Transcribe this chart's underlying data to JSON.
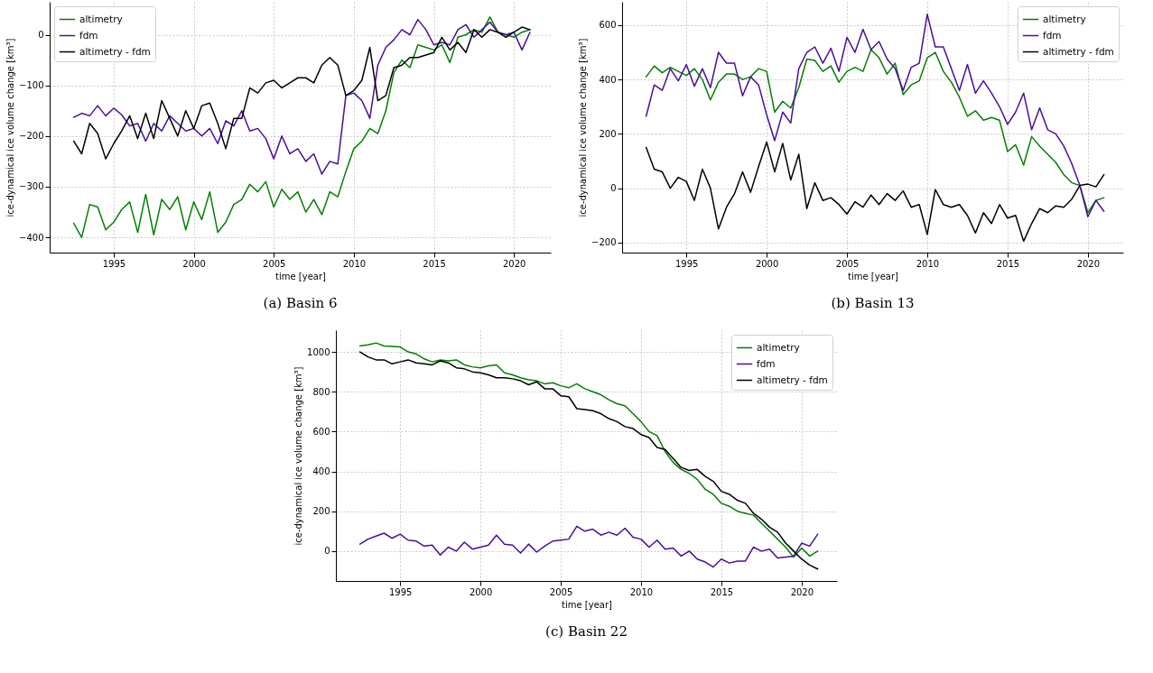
{
  "chart_data": [
    {
      "type": "line",
      "title": "(a) Basin 6",
      "xlabel": "time [year]",
      "ylabel": "ice-dynamical ice volume change [km³]",
      "xlim": [
        1991,
        2022.3
      ],
      "ylim": [
        -430,
        65
      ],
      "xticks": [
        1995,
        2000,
        2005,
        2010,
        2015,
        2020
      ],
      "yticks": [
        -400,
        -300,
        -200,
        -100,
        0
      ],
      "grid": true,
      "legend": "top left",
      "x": [
        1992.5,
        1993,
        1993.5,
        1994,
        1994.5,
        1995,
        1995.5,
        1996,
        1996.5,
        1997,
        1997.5,
        1998,
        1998.5,
        1999,
        1999.5,
        2000,
        2000.5,
        2001,
        2001.5,
        2002,
        2002.5,
        2003,
        2003.5,
        2004,
        2004.5,
        2005,
        2005.5,
        2006,
        2006.5,
        2007,
        2007.5,
        2008,
        2008.5,
        2009,
        2009.5,
        2010,
        2010.5,
        2011,
        2011.5,
        2012,
        2012.5,
        2013,
        2013.5,
        2014,
        2014.5,
        2015,
        2015.5,
        2016,
        2016.5,
        2017,
        2017.5,
        2018,
        2018.5,
        2019,
        2019.5,
        2020,
        2020.5,
        2021
      ],
      "series": [
        {
          "name": "altimetry",
          "color": "#008000",
          "values": [
            -372,
            -400,
            -335,
            -340,
            -385,
            -370,
            -345,
            -330,
            -390,
            -315,
            -395,
            -325,
            -345,
            -320,
            -385,
            -330,
            -365,
            -310,
            -390,
            -370,
            -335,
            -325,
            -295,
            -310,
            -290,
            -340,
            -305,
            -325,
            -310,
            -350,
            -325,
            -355,
            -310,
            -320,
            -270,
            -225,
            -210,
            -185,
            -195,
            -150,
            -75,
            -50,
            -65,
            -20,
            -25,
            -30,
            -20,
            -55,
            -5,
            0,
            10,
            5,
            35,
            5,
            0,
            -5,
            5,
            10
          ]
        },
        {
          "name": "fdm",
          "color": "#4b0c9c",
          "values": [
            -163,
            -155,
            -160,
            -140,
            -160,
            -145,
            -158,
            -180,
            -175,
            -210,
            -175,
            -190,
            -160,
            -175,
            -190,
            -185,
            -200,
            -185,
            -215,
            -170,
            -180,
            -150,
            -190,
            -185,
            -205,
            -245,
            -200,
            -235,
            -225,
            -250,
            -235,
            -275,
            -250,
            -255,
            -120,
            -115,
            -130,
            -165,
            -60,
            -25,
            -10,
            10,
            0,
            30,
            10,
            -20,
            -15,
            -20,
            10,
            20,
            -5,
            10,
            25,
            5,
            0,
            5,
            -30,
            5
          ]
        },
        {
          "name": "altimetry - fdm",
          "color": "#000000",
          "values": [
            -210,
            -235,
            -175,
            -195,
            -245,
            -215,
            -190,
            -160,
            -205,
            -155,
            -205,
            -130,
            -165,
            -200,
            -150,
            -185,
            -140,
            -135,
            -175,
            -225,
            -165,
            -165,
            -105,
            -115,
            -95,
            -90,
            -105,
            -95,
            -85,
            -85,
            -95,
            -60,
            -45,
            -60,
            -120,
            -110,
            -90,
            -25,
            -130,
            -120,
            -65,
            -60,
            -45,
            -45,
            -40,
            -35,
            -5,
            -30,
            -15,
            -35,
            10,
            -5,
            10,
            5,
            -5,
            5,
            15,
            10
          ]
        }
      ]
    },
    {
      "type": "line",
      "title": "(b) Basin 13",
      "xlabel": "time [year]",
      "ylabel": "ice-dynamical ice volume change [km³]",
      "xlim": [
        1991,
        2022.2
      ],
      "ylim": [
        -237,
        686
      ],
      "xticks": [
        1995,
        2000,
        2005,
        2010,
        2015,
        2020
      ],
      "yticks": [
        -200,
        0,
        200,
        400,
        600
      ],
      "grid": true,
      "legend": "top right",
      "x": [
        1992.5,
        1993,
        1993.5,
        1994,
        1994.5,
        1995,
        1995.5,
        1996,
        1996.5,
        1997,
        1997.5,
        1998,
        1998.5,
        1999,
        1999.5,
        2000,
        2000.5,
        2001,
        2001.5,
        2002,
        2002.5,
        2003,
        2003.5,
        2004,
        2004.5,
        2005,
        2005.5,
        2006,
        2006.5,
        2007,
        2007.5,
        2008,
        2008.5,
        2009,
        2009.5,
        2010,
        2010.5,
        2011,
        2011.5,
        2012,
        2012.5,
        2013,
        2013.5,
        2014,
        2014.5,
        2015,
        2015.5,
        2016,
        2016.5,
        2017,
        2017.5,
        2018,
        2018.5,
        2019,
        2019.5,
        2020,
        2020.5,
        2021
      ],
      "series": [
        {
          "name": "altimetry",
          "color": "#008000",
          "values": [
            410,
            450,
            425,
            445,
            430,
            415,
            440,
            400,
            325,
            390,
            420,
            420,
            400,
            410,
            440,
            430,
            280,
            320,
            295,
            370,
            475,
            470,
            430,
            450,
            390,
            430,
            445,
            430,
            510,
            480,
            420,
            460,
            345,
            380,
            395,
            480,
            500,
            430,
            390,
            335,
            265,
            285,
            250,
            260,
            250,
            135,
            160,
            85,
            190,
            155,
            125,
            95,
            50,
            20,
            10,
            -90,
            -45,
            -35
          ]
        },
        {
          "name": "fdm",
          "color": "#4b0c9c",
          "values": [
            265,
            380,
            360,
            440,
            395,
            455,
            375,
            440,
            370,
            500,
            460,
            460,
            340,
            410,
            380,
            270,
            175,
            280,
            240,
            440,
            500,
            520,
            460,
            515,
            430,
            555,
            500,
            585,
            510,
            540,
            475,
            440,
            360,
            445,
            460,
            640,
            520,
            520,
            440,
            360,
            455,
            350,
            395,
            350,
            300,
            235,
            280,
            350,
            215,
            295,
            215,
            200,
            155,
            90,
            10,
            -105,
            -45,
            -85
          ]
        },
        {
          "name": "altimetry - fdm",
          "color": "#000000",
          "values": [
            150,
            70,
            60,
            0,
            40,
            25,
            -45,
            70,
            0,
            -150,
            -70,
            -20,
            60,
            -15,
            80,
            170,
            60,
            165,
            30,
            125,
            -75,
            20,
            -45,
            -35,
            -60,
            -95,
            -50,
            -70,
            -25,
            -60,
            -20,
            -45,
            -10,
            -70,
            -60,
            -170,
            -5,
            -60,
            -70,
            -60,
            -100,
            -165,
            -90,
            -130,
            -60,
            -110,
            -100,
            -195,
            -130,
            -75,
            -90,
            -65,
            -70,
            -40,
            10,
            15,
            5,
            50
          ]
        }
      ]
    },
    {
      "type": "line",
      "title": "(c) Basin 22",
      "xlabel": "time [year]",
      "ylabel": "ice-dynamical ice volume change [km³]",
      "xlim": [
        1991,
        2022.2
      ],
      "ylim": [
        -150,
        1109
      ],
      "xticks": [
        1995,
        2000,
        2005,
        2010,
        2015,
        2020
      ],
      "yticks": [
        0,
        200,
        400,
        600,
        800,
        1000
      ],
      "grid": true,
      "legend": "top right",
      "x": [
        1992.5,
        1993,
        1993.5,
        1994,
        1994.5,
        1995,
        1995.5,
        1996,
        1996.5,
        1997,
        1997.5,
        1998,
        1998.5,
        1999,
        1999.5,
        2000,
        2000.5,
        2001,
        2001.5,
        2002,
        2002.5,
        2003,
        2003.5,
        2004,
        2004.5,
        2005,
        2005.5,
        2006,
        2006.5,
        2007,
        2007.5,
        2008,
        2008.5,
        2009,
        2009.5,
        2010,
        2010.5,
        2011,
        2011.5,
        2012,
        2012.5,
        2013,
        2013.5,
        2014,
        2014.5,
        2015,
        2015.5,
        2016,
        2016.5,
        2017,
        2017.5,
        2018,
        2018.5,
        2019,
        2019.5,
        2020,
        2020.5,
        2021
      ],
      "series": [
        {
          "name": "altimetry",
          "color": "#008000",
          "values": [
            1030,
            1035,
            1045,
            1030,
            1028,
            1025,
            1000,
            990,
            965,
            950,
            960,
            955,
            960,
            935,
            925,
            920,
            930,
            935,
            895,
            885,
            870,
            860,
            855,
            840,
            845,
            830,
            820,
            840,
            815,
            800,
            785,
            760,
            740,
            730,
            690,
            650,
            600,
            580,
            500,
            445,
            410,
            390,
            360,
            310,
            285,
            240,
            225,
            200,
            190,
            180,
            140,
            100,
            60,
            20,
            -30,
            15,
            -25,
            0
          ]
        },
        {
          "name": "fdm",
          "color": "#4b0c9c",
          "values": [
            35,
            60,
            75,
            90,
            65,
            85,
            55,
            50,
            25,
            30,
            -20,
            20,
            0,
            45,
            10,
            20,
            30,
            80,
            35,
            30,
            -10,
            35,
            -5,
            25,
            50,
            55,
            60,
            125,
            100,
            110,
            80,
            95,
            80,
            115,
            70,
            60,
            20,
            55,
            10,
            15,
            -25,
            0,
            -40,
            -55,
            -80,
            -40,
            -60,
            -50,
            -50,
            20,
            0,
            10,
            -35,
            -30,
            -25,
            40,
            25,
            85
          ]
        },
        {
          "name": "altimetry - fdm",
          "color": "#000000",
          "values": [
            1000,
            975,
            960,
            960,
            940,
            950,
            960,
            945,
            940,
            935,
            955,
            945,
            920,
            915,
            900,
            895,
            885,
            870,
            870,
            865,
            855,
            835,
            850,
            815,
            815,
            780,
            775,
            715,
            710,
            705,
            690,
            665,
            650,
            625,
            615,
            585,
            570,
            520,
            510,
            465,
            420,
            405,
            410,
            375,
            350,
            300,
            285,
            255,
            240,
            190,
            160,
            120,
            95,
            40,
            0,
            -40,
            -70,
            -90
          ]
        }
      ]
    }
  ]
}
